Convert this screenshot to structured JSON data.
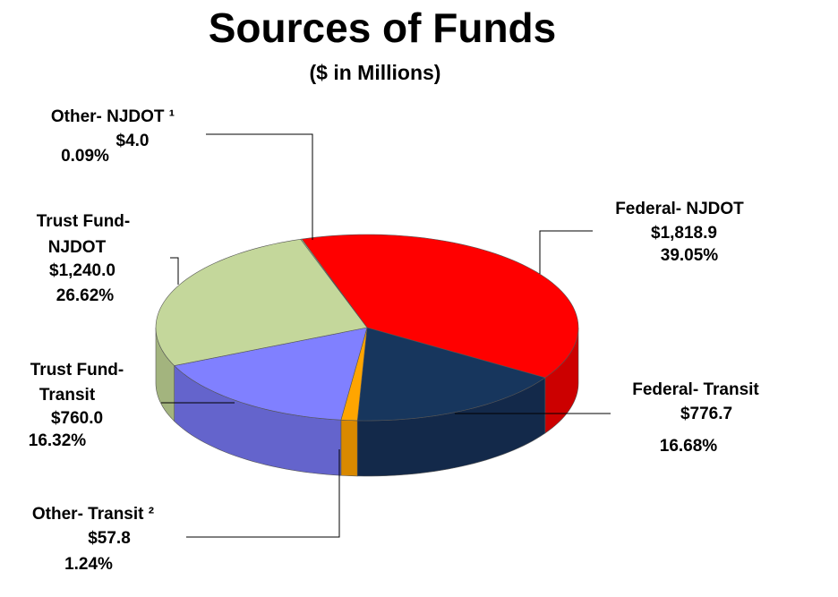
{
  "chart_data": {
    "type": "pie",
    "title": "Sources of Funds",
    "subtitle": "($ in Millions)",
    "slices": [
      {
        "name": "Federal- NJDOT",
        "amount": "$1,818.9",
        "percent_label": "39.05%",
        "value": 39.05,
        "color": "#ff0000",
        "side_color": "#cc0000"
      },
      {
        "name": "Federal- Transit",
        "amount": "$776.7",
        "percent_label": "16.68%",
        "value": 16.68,
        "color": "#17365d",
        "side_color": "#13294a"
      },
      {
        "name": "Other- Transit ²",
        "amount": "$57.8",
        "percent_label": "1.24%",
        "value": 1.24,
        "color": "#ffa500",
        "side_color": "#d98900"
      },
      {
        "name": "Trust Fund- Transit",
        "name_lines": [
          "Trust Fund-",
          "Transit"
        ],
        "amount": "$760.0",
        "percent_label": "16.32%",
        "value": 16.32,
        "color": "#8080ff",
        "side_color": "#6464cc"
      },
      {
        "name": "Trust Fund- NJDOT",
        "name_lines": [
          "Trust Fund-",
          "NJDOT"
        ],
        "amount": "$1,240.0",
        "percent_label": "26.62%",
        "value": 26.62,
        "color": "#c4d79b",
        "side_color": "#a3b47e"
      },
      {
        "name": "Other- NJDOT ¹",
        "amount": "$4.0",
        "percent_label": "0.09%",
        "value": 0.09,
        "color": "#c4d79b",
        "side_color": "#a3b47e"
      }
    ]
  }
}
